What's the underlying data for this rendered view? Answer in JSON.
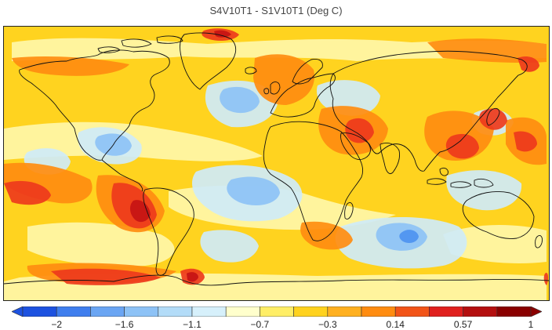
{
  "title": "S4V10T1 - S1V10T1 (Deg C)",
  "colorbar": {
    "colors": [
      "#1d52e0",
      "#3f7eee",
      "#6aa5f3",
      "#8dc2f6",
      "#b3dcf8",
      "#d6f0fb",
      "#ffffcc",
      "#ffee66",
      "#ffd21e",
      "#ffb020",
      "#ff8c10",
      "#f25418",
      "#e0201e",
      "#b40f0f",
      "#8a0000"
    ],
    "tick_labels": [
      "−2",
      "−1.6",
      "−1.1",
      "−0.7",
      "−0.3",
      "0.14",
      "0.57",
      "1"
    ]
  },
  "map": {
    "background": "#ffd31f",
    "palette": {
      "deep_blue": "#4d93f0",
      "blue": "#8dc2f6",
      "light_blue": "#cfeaf9",
      "cream": "#fff6a8",
      "yellow": "#ffea4c",
      "orange": "#ffb020",
      "dark_orange": "#ff8c10",
      "red": "#ee3a1c",
      "dark_red": "#c61414",
      "coastline": "#111111"
    }
  }
}
